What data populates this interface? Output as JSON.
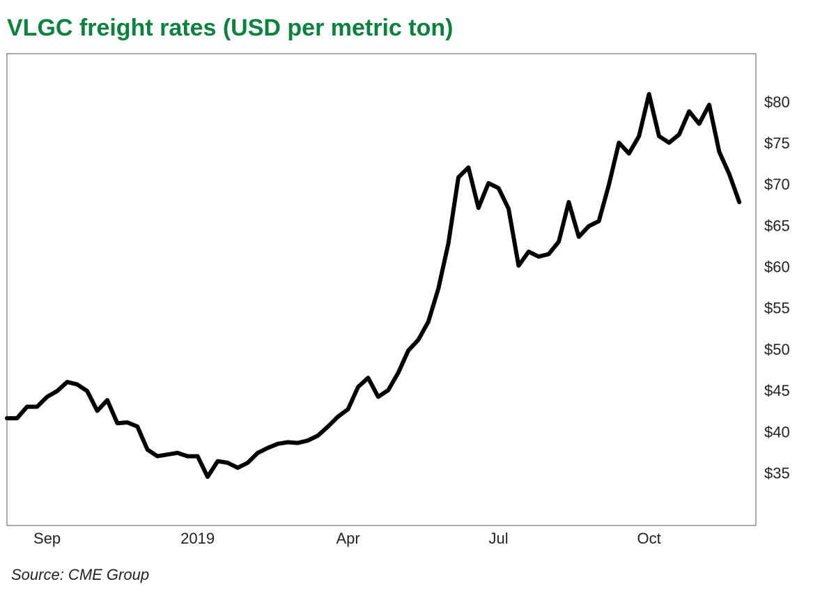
{
  "chart_data": {
    "type": "line",
    "title": "VLGC freight rates (USD per metric ton)",
    "source": "Source: CME Group",
    "categories": [
      null,
      null,
      null,
      null,
      "Sep",
      null,
      null,
      null,
      null,
      null,
      null,
      null,
      null,
      null,
      null,
      null,
      null,
      null,
      null,
      "2019",
      null,
      null,
      null,
      null,
      null,
      null,
      null,
      null,
      null,
      null,
      null,
      null,
      null,
      null,
      "Apr",
      null,
      null,
      null,
      null,
      null,
      null,
      null,
      null,
      null,
      null,
      null,
      null,
      null,
      null,
      "Jul",
      null,
      null,
      null,
      null,
      null,
      null,
      null,
      null,
      null,
      null,
      null,
      null,
      null,
      null,
      "Oct",
      null,
      null,
      null,
      null,
      null,
      null,
      null,
      null,
      null
    ],
    "values": [
      41.8,
      41.8,
      43.2,
      43.2,
      44.4,
      45.1,
      46.2,
      45.9,
      45.1,
      42.7,
      44.0,
      41.2,
      41.3,
      40.8,
      38.0,
      37.2,
      37.4,
      37.6,
      37.2,
      37.2,
      34.7,
      36.6,
      36.4,
      35.8,
      36.4,
      37.6,
      38.2,
      38.7,
      38.9,
      38.8,
      39.1,
      39.7,
      40.8,
      42.0,
      42.9,
      45.6,
      46.7,
      44.4,
      45.2,
      47.3,
      50.0,
      51.3,
      53.5,
      57.5,
      63.0,
      71.0,
      72.2,
      67.3,
      70.3,
      69.7,
      67.2,
      60.3,
      62.0,
      61.4,
      61.7,
      63.2,
      68.0,
      63.8,
      65.1,
      65.7,
      70.1,
      75.2,
      73.9,
      76.0,
      81.1,
      76.0,
      75.2,
      76.2,
      79.0,
      77.5,
      79.8,
      74.1,
      71.4,
      68.0
    ],
    "color": "#000000",
    "ylim": [
      28.8,
      86
    ],
    "yticks": [
      {
        "value": 35,
        "label": "$35"
      },
      {
        "value": 40,
        "label": "$40"
      },
      {
        "value": 45,
        "label": "$45"
      },
      {
        "value": 50,
        "label": "$50"
      },
      {
        "value": 55,
        "label": "$55"
      },
      {
        "value": 60,
        "label": "$60"
      },
      {
        "value": 65,
        "label": "$65"
      },
      {
        "value": 70,
        "label": "$70"
      },
      {
        "value": 75,
        "label": "$75"
      },
      {
        "value": 80,
        "label": "$80"
      }
    ],
    "grid": false
  }
}
